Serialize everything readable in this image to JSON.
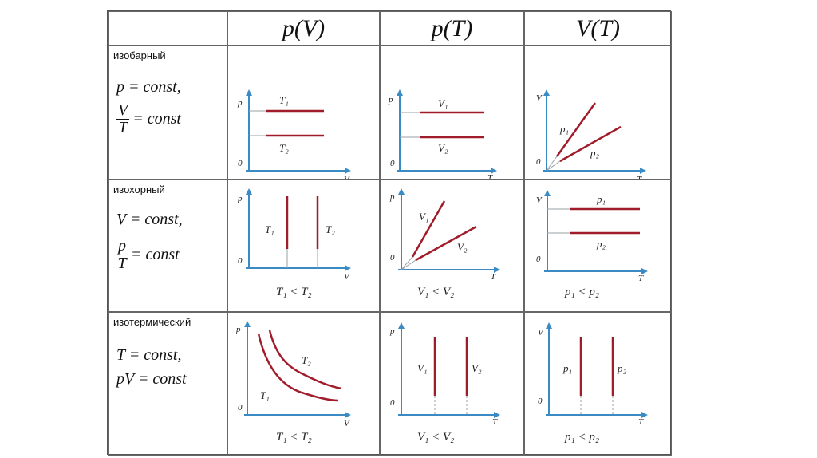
{
  "headers": {
    "col1": "p(V)",
    "col2": "p(T)",
    "col3": "V(T)"
  },
  "rows": [
    {
      "process": "изобарный",
      "eq1": "p = const,",
      "frac_num": "V",
      "frac_den": "T",
      "frac_rest": "= const"
    },
    {
      "process": "изохорный",
      "eq1": "V = const,",
      "frac_num": "p",
      "frac_den": "T",
      "frac_rest": "= const"
    },
    {
      "process": "изотермический",
      "eq1": "T = const,",
      "eq2": "pV = const"
    }
  ],
  "axes": {
    "p": "p",
    "V": "V",
    "T": "T",
    "zero": "0"
  },
  "labels": {
    "T1": "T₁",
    "T2": "T₂",
    "V1": "V₁",
    "V2": "V₂",
    "p1": "p₁",
    "p2": "p₂"
  },
  "conditions": {
    "T": "T₁ < T₂",
    "V": "V₁ < V₂",
    "p": "p₁ < p₂"
  },
  "colors": {
    "axis": "#3a8bc4",
    "curve": "#a01c2a",
    "guide": "#9aa0a6"
  }
}
